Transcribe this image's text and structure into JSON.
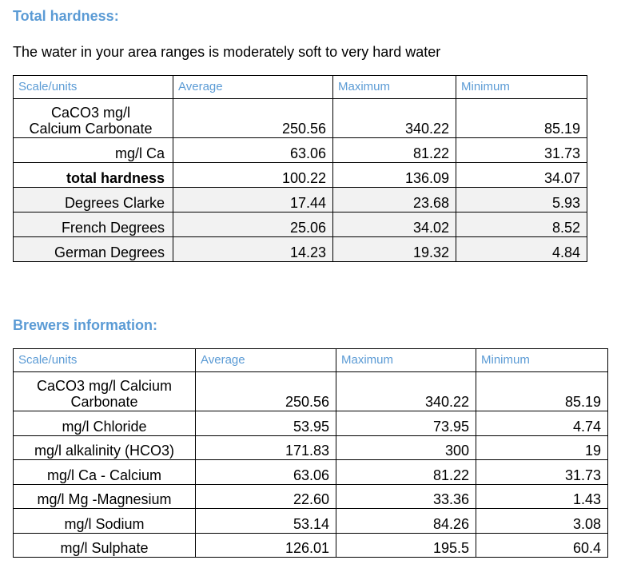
{
  "hardness": {
    "title": "Total hardness:",
    "intro": "The water in your area ranges is moderately soft to very hard water",
    "headers": [
      "Scale/units",
      "Average",
      "Maximum",
      "Minimum"
    ],
    "rows": [
      {
        "label_line1": "CaCO3 mg/l",
        "label_line2": "Calcium Carbonate",
        "average": "250.56",
        "maximum": "340.22",
        "minimum": "85.19"
      },
      {
        "label": "mg/l Ca",
        "average": "63.06",
        "maximum": "81.22",
        "minimum": "31.73"
      },
      {
        "label": "total hardness",
        "average": "100.22",
        "maximum": "136.09",
        "minimum": "34.07"
      },
      {
        "label": "Degrees Clarke",
        "average": "17.44",
        "maximum": "23.68",
        "minimum": "5.93"
      },
      {
        "label": "French Degrees",
        "average": "25.06",
        "maximum": "34.02",
        "minimum": "8.52"
      },
      {
        "label": "German Degrees",
        "average": "14.23",
        "maximum": "19.32",
        "minimum": "4.84"
      }
    ]
  },
  "brewers": {
    "title": "Brewers information:",
    "headers": [
      "Scale/units",
      "Average",
      "Maximum",
      "Minimum"
    ],
    "rows": [
      {
        "label_line1": "CaCO3 mg/l Calcium",
        "label_line2": "Carbonate",
        "average": "250.56",
        "maximum": "340.22",
        "minimum": "85.19"
      },
      {
        "label": "mg/l Chloride",
        "average": "53.95",
        "maximum": "73.95",
        "minimum": "4.74"
      },
      {
        "label": "mg/l alkalinity (HCO3)",
        "average": "171.83",
        "maximum": "300",
        "minimum": "19"
      },
      {
        "label": "mg/l Ca - Calcium",
        "average": "63.06",
        "maximum": "81.22",
        "minimum": "31.73"
      },
      {
        "label": "mg/l Mg -Magnesium",
        "average": "22.60",
        "maximum": "33.36",
        "minimum": "1.43"
      },
      {
        "label": "mg/l Sodium",
        "average": "53.14",
        "maximum": "84.26",
        "minimum": "3.08"
      },
      {
        "label": "mg/l Sulphate",
        "average": "126.01",
        "maximum": "195.5",
        "minimum": "60.4"
      }
    ]
  }
}
